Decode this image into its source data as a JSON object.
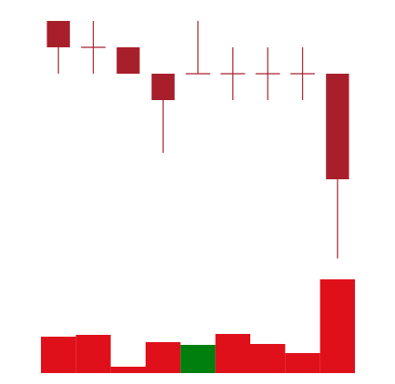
{
  "chart_data": [
    {
      "type": "candlestick",
      "open": [
        10,
        9,
        9,
        8,
        8,
        8,
        8,
        8,
        8
      ],
      "high": [
        10,
        10,
        9,
        8,
        10,
        9,
        9,
        9,
        8
      ],
      "low": [
        8,
        8,
        8,
        5,
        8,
        7,
        7,
        7,
        1
      ],
      "close": [
        9,
        9,
        8,
        7,
        8,
        8,
        8,
        8,
        4
      ],
      "color": "#a81f2c",
      "ylim": [
        1,
        10.5
      ]
    },
    {
      "type": "bar",
      "values": [
        40,
        42,
        7,
        34,
        31,
        43,
        32,
        22,
        103
      ],
      "colors": [
        "#e0101a",
        "#e0101a",
        "#e0101a",
        "#e0101a",
        "#007f0e",
        "#e0101a",
        "#e0101a",
        "#e0101a",
        "#e0101a"
      ],
      "ylim": [
        0,
        110
      ]
    }
  ]
}
